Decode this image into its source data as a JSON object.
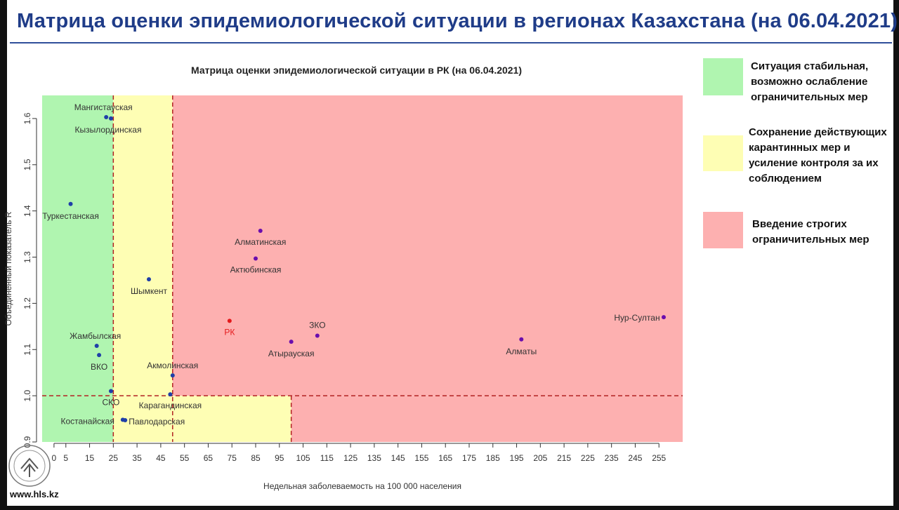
{
  "header": {
    "title": "Матрица оценки эпидемиологической ситуации в регионах Казахстана (на 06.04.2021)"
  },
  "chart_data": {
    "type": "scatter",
    "title": "Матрица оценки эпидемиологической ситуации в РК (на 06.04.2021)",
    "xlabel": "Недельная заболеваемость на 100 000 населения",
    "ylabel": "Объединенный показатель R",
    "xlim": [
      -5,
      265
    ],
    "ylim": [
      0.9,
      1.65
    ],
    "xticks": [
      0,
      5,
      15,
      25,
      35,
      45,
      55,
      65,
      75,
      85,
      95,
      105,
      115,
      125,
      135,
      145,
      155,
      165,
      175,
      185,
      195,
      205,
      215,
      225,
      235,
      245,
      255
    ],
    "yticks": [
      0.9,
      1.0,
      1.1,
      1.2,
      1.3,
      1.4,
      1.5,
      1.6
    ],
    "zones": [
      {
        "name": "green",
        "x": [
          -5,
          25
        ],
        "y": [
          0.9,
          1.65
        ],
        "color": "#b0f5b0"
      },
      {
        "name": "yellow",
        "x": [
          25,
          50
        ],
        "y": [
          1.0,
          1.65
        ],
        "color": "#fefeb4"
      },
      {
        "name": "yellow",
        "x": [
          25,
          100
        ],
        "y": [
          0.9,
          1.0
        ],
        "color": "#fefeb4"
      },
      {
        "name": "red",
        "x": [
          50,
          265
        ],
        "y": [
          1.0,
          1.65
        ],
        "color": "#fdb0b0"
      },
      {
        "name": "red",
        "x": [
          100,
          265
        ],
        "y": [
          0.9,
          1.0
        ],
        "color": "#fdb0b0"
      }
    ],
    "thresholds": {
      "x": [
        25,
        50,
        100
      ],
      "y": 1.0,
      "color": "#b22222"
    },
    "points": [
      {
        "label": "Мангистауская",
        "x": 22,
        "y": 1.603,
        "color": "#1f3fa8"
      },
      {
        "label": "Кызылординская",
        "x": 24,
        "y": 1.6,
        "color": "#1f3fa8"
      },
      {
        "label": "Туркестанская",
        "x": 7,
        "y": 1.415,
        "color": "#1f3fa8"
      },
      {
        "label": "Шымкент",
        "x": 40,
        "y": 1.252,
        "color": "#1f3fa8"
      },
      {
        "label": "Жамбылская",
        "x": 18,
        "y": 1.108,
        "color": "#1f3fa8"
      },
      {
        "label": "ВКО",
        "x": 19,
        "y": 1.088,
        "color": "#1f3fa8"
      },
      {
        "label": "СКО",
        "x": 24,
        "y": 1.01,
        "color": "#1f3fa8"
      },
      {
        "label": "Акмолинская",
        "x": 50,
        "y": 1.044,
        "color": "#1f3fa8"
      },
      {
        "label": "Карагандинская",
        "x": 49,
        "y": 1.003,
        "color": "#1f3fa8"
      },
      {
        "label": "Костанайская",
        "x": 29,
        "y": 0.948,
        "color": "#1f3fa8"
      },
      {
        "label": "Павлодарская",
        "x": 30,
        "y": 0.947,
        "color": "#1f3fa8"
      },
      {
        "label": "Алматинская",
        "x": 87,
        "y": 1.357,
        "color": "#6a0dad"
      },
      {
        "label": "Актюбинская",
        "x": 85,
        "y": 1.297,
        "color": "#6a0dad"
      },
      {
        "label": "РК",
        "x": 74,
        "y": 1.162,
        "color": "#e41a1c"
      },
      {
        "label": "ЗКО",
        "x": 111,
        "y": 1.13,
        "color": "#6a0dad"
      },
      {
        "label": "Атырауская",
        "x": 100,
        "y": 1.117,
        "color": "#6a0dad"
      },
      {
        "label": "Алматы",
        "x": 197,
        "y": 1.122,
        "color": "#6a0dad"
      },
      {
        "label": "Нур-Султан",
        "x": 257,
        "y": 1.17,
        "color": "#6a0dad"
      }
    ]
  },
  "legend": [
    {
      "text_lines": [
        "Ситуация стабильная,",
        "возможно ослабление",
        "ограничительных мер"
      ],
      "color": "#b0f5b0"
    },
    {
      "text_lines": [
        "Сохранение действующих",
        "карантинных мер и",
        "усиление контроля за их",
        "соблюдением"
      ],
      "color": "#fefeb4"
    },
    {
      "text_lines": [
        "Введение строгих",
        "ограничительных мер"
      ],
      "color": "#fdb0b0"
    }
  ],
  "footer": {
    "site": "www.hls.kz",
    "logo": "hls-logo-icon"
  }
}
